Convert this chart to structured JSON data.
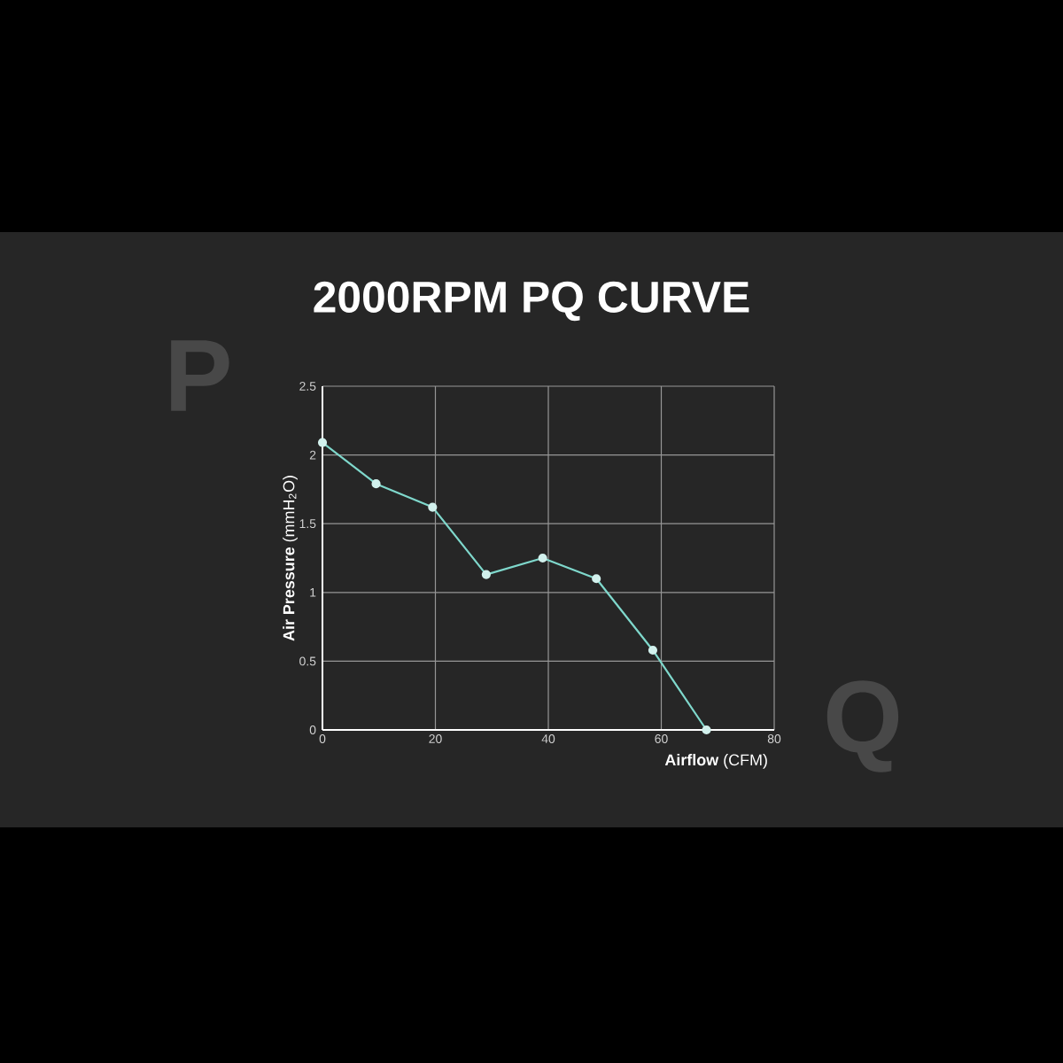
{
  "chart_data": {
    "type": "line",
    "title": "2000RPM PQ CURVE",
    "xlabel": "**Airflow** (CFM)",
    "ylabel": "**Air Pressure** (mmH$_{2}$O)",
    "x": [
      0,
      9.5,
      19.5,
      29,
      39,
      48.5,
      58.5,
      68
    ],
    "series": [
      {
        "color": "#7fd8cc",
        "values": [
          2.09,
          1.79,
          1.62,
          1.13,
          1.25,
          1.1,
          0.58,
          0
        ]
      }
    ],
    "xlim": [
      0,
      80
    ],
    "ylim": [
      0,
      2.5
    ],
    "xticks": [
      0,
      20,
      40,
      60,
      80
    ],
    "yticks": [
      0,
      0.5,
      1,
      1.5,
      2,
      2.5
    ],
    "grid": true,
    "marker": "circle",
    "line_style": "solid",
    "annotations": [
      "P",
      "Q"
    ]
  }
}
